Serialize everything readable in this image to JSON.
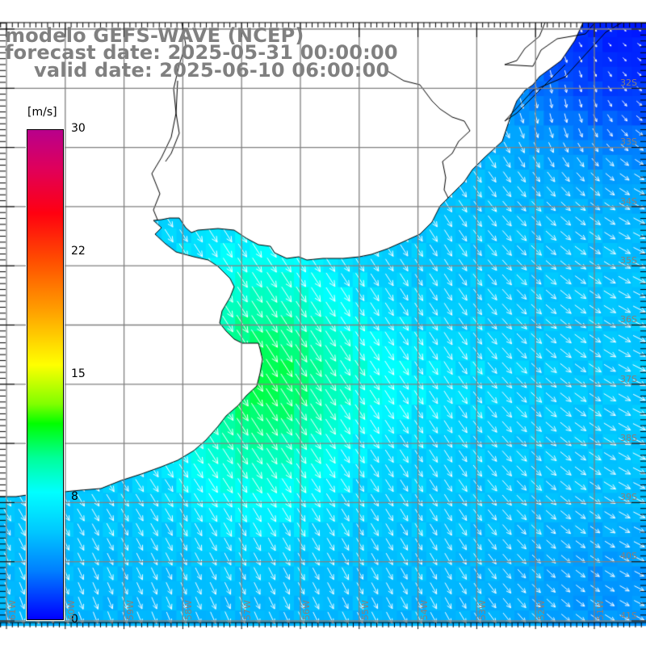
{
  "title": {
    "line1": "modelo GEFS-WAVE (NCEP)",
    "line2": "forecast date: 2025-05-31 00:00:00",
    "line3": "valid date: 2025-06-10 06:00:00"
  },
  "colorbar": {
    "unit": "[m/s]",
    "labels": [
      "30",
      "22",
      "15",
      "8",
      "0"
    ],
    "colors": [
      "#b8008c",
      "#ff0010",
      "#ffff00",
      "#00ff00",
      "#00ffff",
      "#0000ff"
    ]
  },
  "axes": {
    "lat_labels": [
      "32S",
      "33S",
      "34S",
      "35S",
      "36S",
      "37S",
      "38S",
      "39S",
      "40S",
      "41S"
    ],
    "lon_labels": [
      "61W",
      "60W",
      "59W",
      "58W",
      "57W",
      "56W",
      "55W",
      "54W",
      "53W",
      "52W",
      "51W"
    ]
  },
  "style": {
    "grid_color": "#808080",
    "label_color": "#8a7f78",
    "title_color": "#808080"
  }
}
